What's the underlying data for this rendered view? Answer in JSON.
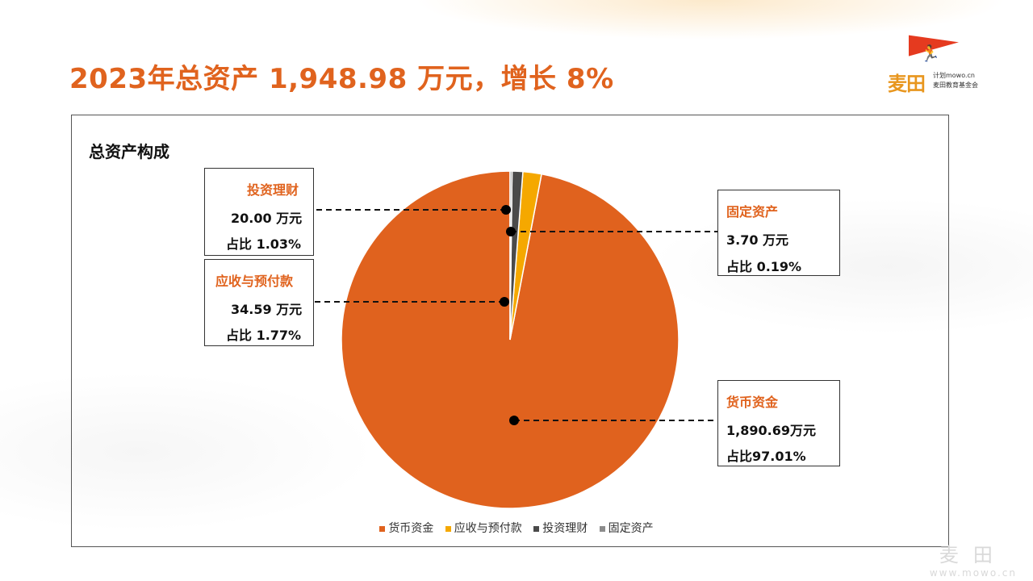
{
  "header": {
    "title": "2023年总资产 1,948.98 万元，增长 8%"
  },
  "logo": {
    "name": "麦田",
    "sub_line1": "计划mowo.cn",
    "sub_line2": "麦田教育基金会"
  },
  "watermark": {
    "name": "麦田",
    "url": "www.mowo.cn"
  },
  "colors": {
    "accent": "#e0631e",
    "currency": "#e0621e",
    "receivable": "#f5a800",
    "investment": "#4a4a4a",
    "fixed": "#8c8c8c"
  },
  "chart_data": {
    "type": "pie",
    "title": "总资产构成",
    "slices": [
      {
        "name": "货币资金",
        "value": 1890.69,
        "share": 97.01,
        "value_label": "1,890.69万元",
        "share_label": "占比97.01%"
      },
      {
        "name": "应收与预付款",
        "value": 34.59,
        "share": 1.77,
        "value_label": "34.59 万元",
        "share_label": "占比 1.77%"
      },
      {
        "name": "投资理财",
        "value": 20.0,
        "share": 1.03,
        "value_label": "20.00 万元",
        "share_label": "占比 1.03%"
      },
      {
        "name": "固定资产",
        "value": 3.7,
        "share": 0.19,
        "value_label": "3.70 万元",
        "share_label": "占比 0.19%"
      }
    ],
    "legend": [
      "货币资金",
      "应收与预付款",
      "投资理财",
      "固定资产"
    ],
    "legend_position": "bottom",
    "start_angle": "12 o'clock, counter-clockwise"
  }
}
